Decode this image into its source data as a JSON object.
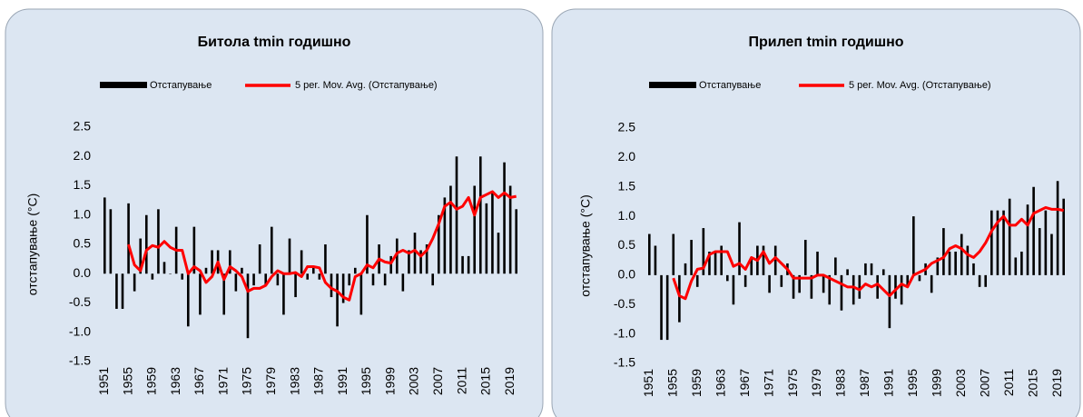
{
  "chart_data": [
    {
      "type": "bar",
      "title": "Битола  tmin годишно",
      "y_label": "отстапување (°C)",
      "categories": [
        "1951",
        null,
        null,
        null,
        "1955",
        null,
        null,
        null,
        "1959",
        null,
        null,
        null,
        "1963",
        null,
        null,
        null,
        "1967",
        null,
        null,
        null,
        "1971",
        null,
        null,
        null,
        "1975",
        null,
        null,
        null,
        "1979",
        null,
        null,
        null,
        "1983",
        null,
        null,
        null,
        "1987",
        null,
        null,
        null,
        "1991",
        null,
        null,
        null,
        "1995",
        null,
        null,
        null,
        "1999",
        null,
        null,
        null,
        "2003",
        null,
        null,
        null,
        "2007",
        null,
        null,
        null,
        "2011",
        null,
        null,
        null,
        "2015",
        null,
        null,
        null,
        "2019",
        null
      ],
      "series": [
        {
          "name": "Отстапување",
          "type": "bar",
          "color": "#000000",
          "values": [
            1.3,
            1.1,
            -0.6,
            -0.6,
            1.2,
            -0.3,
            0.6,
            1.0,
            -0.1,
            1.1,
            0.2,
            0.0,
            0.8,
            -0.1,
            -0.9,
            0.8,
            -0.7,
            0.1,
            0.4,
            0.4,
            -0.7,
            0.4,
            -0.3,
            0.1,
            -1.1,
            -0.2,
            0.5,
            -0.2,
            0.8,
            -0.2,
            -0.7,
            0.6,
            -0.4,
            0.4,
            -0.1,
            0.1,
            -0.1,
            0.5,
            -0.4,
            -0.9,
            -0.5,
            -0.2,
            0.1,
            -0.7,
            1.0,
            -0.2,
            0.5,
            -0.2,
            0.3,
            0.6,
            -0.3,
            0.4,
            0.7,
            0.4,
            0.5,
            -0.2,
            1.0,
            1.3,
            1.5,
            2.0,
            0.3,
            0.3,
            1.5,
            2.0,
            1.2,
            1.4,
            0.7,
            1.9,
            1.5,
            1.1
          ]
        },
        {
          "name": "5 per. Mov. Avg. (Отстапување)",
          "type": "line",
          "color": "#ff0000",
          "values": [
            null,
            null,
            null,
            null,
            0.5,
            0.15,
            0.05,
            0.4,
            0.48,
            0.45,
            0.55,
            0.45,
            0.4,
            0.4,
            0.0,
            0.12,
            0.05,
            -0.15,
            -0.05,
            0.2,
            -0.1,
            0.12,
            0.05,
            -0.05,
            -0.3,
            -0.25,
            -0.25,
            -0.2,
            -0.05,
            0.05,
            0.0,
            0.0,
            0.02,
            -0.05,
            0.12,
            0.12,
            0.1,
            -0.15,
            -0.25,
            -0.3,
            -0.4,
            -0.45,
            -0.05,
            0.0,
            0.15,
            0.1,
            0.25,
            0.2,
            0.18,
            0.35,
            0.4,
            0.35,
            0.4,
            0.3,
            0.4,
            0.6,
            0.85,
            1.15,
            1.22,
            1.1,
            1.15,
            1.3,
            1.0,
            1.3,
            1.35,
            1.4,
            1.3,
            1.38,
            1.3,
            1.32
          ]
        }
      ],
      "ylim": [
        -1.5,
        2.5
      ],
      "yticks": [
        2.5,
        {
          "value": 2,
          "label": "2.0"
        },
        1.5,
        {
          "value": 1,
          "label": "1.0"
        },
        0.5,
        {
          "value": 0,
          "label": "0.0"
        },
        -0.5,
        {
          "value": -1,
          "label": "-1.0"
        },
        -1.5
      ]
    },
    {
      "type": "bar",
      "title": "Прилеп tmin годишно",
      "y_label": "отстапување (°C)",
      "categories": [
        "1951",
        null,
        null,
        null,
        "1955",
        null,
        null,
        null,
        "1959",
        null,
        null,
        null,
        "1963",
        null,
        null,
        null,
        "1967",
        null,
        null,
        null,
        "1971",
        null,
        null,
        null,
        "1975",
        null,
        null,
        null,
        "1979",
        null,
        null,
        null,
        "1983",
        null,
        null,
        null,
        "1987",
        null,
        null,
        null,
        "1991",
        null,
        null,
        null,
        "1995",
        null,
        null,
        null,
        "1999",
        null,
        null,
        null,
        "2003",
        null,
        null,
        null,
        "2007",
        null,
        null,
        null,
        "2011",
        null,
        null,
        null,
        "2015",
        null,
        null,
        null,
        "2019",
        null
      ],
      "series": [
        {
          "name": "Отстапување",
          "type": "bar",
          "color": "#000000",
          "values": [
            0.7,
            0.5,
            -1.1,
            -1.1,
            0.7,
            -0.8,
            0.2,
            0.6,
            -0.2,
            0.8,
            0.4,
            0.4,
            0.5,
            -0.1,
            -0.5,
            0.9,
            -0.2,
            0.3,
            0.5,
            0.5,
            -0.3,
            0.5,
            -0.2,
            0.2,
            -0.4,
            -0.3,
            0.6,
            -0.4,
            0.4,
            -0.3,
            -0.5,
            0.3,
            -0.6,
            0.1,
            -0.5,
            -0.4,
            0.2,
            0.2,
            -0.4,
            0.1,
            -0.9,
            -0.4,
            -0.5,
            -0.2,
            1.0,
            -0.1,
            0.2,
            -0.3,
            0.3,
            0.8,
            0.4,
            0.4,
            0.7,
            0.5,
            0.2,
            -0.2,
            -0.2,
            1.1,
            1.1,
            1.1,
            1.3,
            0.3,
            0.4,
            1.2,
            1.5,
            0.8,
            1.1,
            0.7,
            1.6,
            1.3
          ]
        },
        {
          "name": "5 per. Mov. Avg. (Отстапување)",
          "type": "line",
          "color": "#ff0000",
          "values": [
            null,
            null,
            null,
            null,
            -0.05,
            -0.35,
            -0.4,
            -0.1,
            0.1,
            0.12,
            0.35,
            0.4,
            0.4,
            0.4,
            0.15,
            0.2,
            0.1,
            0.3,
            0.25,
            0.4,
            0.2,
            0.3,
            0.2,
            0.1,
            -0.05,
            -0.05,
            -0.05,
            -0.05,
            0.0,
            0.0,
            -0.05,
            -0.1,
            -0.15,
            -0.2,
            -0.2,
            -0.25,
            -0.15,
            -0.2,
            -0.15,
            -0.25,
            -0.35,
            -0.25,
            -0.15,
            -0.2,
            0.0,
            0.05,
            0.1,
            0.2,
            0.25,
            0.3,
            0.45,
            0.5,
            0.45,
            0.35,
            0.3,
            0.4,
            0.55,
            0.75,
            0.9,
            1.0,
            0.85,
            0.85,
            0.95,
            0.85,
            1.05,
            1.1,
            1.15,
            1.12,
            1.12,
            1.1
          ]
        }
      ],
      "ylim": [
        -1.5,
        2.5
      ],
      "yticks": [
        2.5,
        {
          "value": 2,
          "label": "2.0"
        },
        1.5,
        {
          "value": 1,
          "label": "1.0"
        },
        0.5,
        {
          "value": 0,
          "label": "0.0"
        },
        -0.5,
        {
          "value": -1,
          "label": "-1.0"
        },
        -1.5
      ]
    }
  ]
}
